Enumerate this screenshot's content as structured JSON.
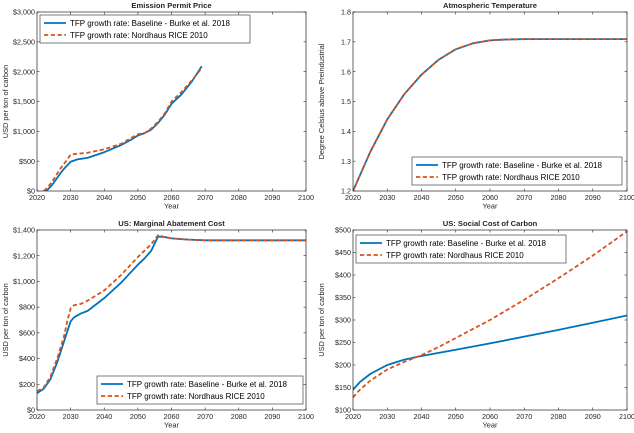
{
  "chart_data": [
    {
      "type": "line",
      "title": "Emission Permit Price",
      "xlabel": "Year",
      "ylabel": "USD per ton of carbon",
      "xlim": [
        2020,
        2100
      ],
      "ylim": [
        0,
        3000
      ],
      "xticks": [
        "2020",
        "2030",
        "2040",
        "2050",
        "2060",
        "2070",
        "2080",
        "2090",
        "2100"
      ],
      "yticks": [
        "$0",
        "$500",
        "$1,000",
        "$1,500",
        "$2,000",
        "$2,500",
        "$3,000"
      ],
      "ytick_values": [
        0,
        500,
        1000,
        1500,
        2000,
        2500,
        3000
      ],
      "legend_position": "top-left",
      "grid": false,
      "series": [
        {
          "name": "TFP growth rate: Baseline - Burke et al. 2018",
          "color": "#0072BD",
          "style": "solid",
          "x": [
            2022,
            2023,
            2024,
            2025,
            2026,
            2027,
            2028,
            2029,
            2030,
            2032,
            2035,
            2040,
            2045,
            2048,
            2050,
            2052,
            2054,
            2056,
            2058,
            2060,
            2063,
            2066,
            2069
          ],
          "y": [
            0,
            15,
            70,
            140,
            220,
            300,
            370,
            430,
            490,
            530,
            555,
            650,
            770,
            860,
            930,
            970,
            1030,
            1140,
            1280,
            1460,
            1620,
            1830,
            2090
          ]
        },
        {
          "name": "TFP growth rate: Nordhaus RICE 2010",
          "color": "#D95319",
          "style": "dashed",
          "x": [
            2022,
            2023,
            2024,
            2025,
            2026,
            2027,
            2028,
            2029,
            2030,
            2032,
            2035,
            2040,
            2045,
            2048,
            2050,
            2052,
            2054,
            2056,
            2058,
            2060,
            2063,
            2066,
            2069
          ],
          "y": [
            0,
            50,
            120,
            200,
            290,
            380,
            450,
            530,
            610,
            625,
            640,
            700,
            790,
            890,
            950,
            970,
            1050,
            1160,
            1300,
            1500,
            1660,
            1850,
            2060
          ]
        }
      ]
    },
    {
      "type": "line",
      "title": "Atmospheric Temperature",
      "xlabel": "Year",
      "ylabel": "Degree Celsius above Preindustrial",
      "xlim": [
        2020,
        2100
      ],
      "ylim": [
        1.2,
        1.8
      ],
      "xticks": [
        "2020",
        "2030",
        "2040",
        "2050",
        "2060",
        "2070",
        "2080",
        "2090",
        "2100"
      ],
      "yticks": [
        "1.2",
        "1.3",
        "1.4",
        "1.5",
        "1.6",
        "1.7",
        "1.8"
      ],
      "ytick_values": [
        1.2,
        1.3,
        1.4,
        1.5,
        1.6,
        1.7,
        1.8
      ],
      "legend_position": "bottom-right",
      "grid": false,
      "series": [
        {
          "name": "TFP growth rate: Baseline - Burke et al. 2018",
          "color": "#0072BD",
          "style": "solid",
          "x": [
            2020,
            2025,
            2030,
            2035,
            2040,
            2045,
            2050,
            2055,
            2060,
            2065,
            2070,
            2080,
            2090,
            2100
          ],
          "y": [
            1.2,
            1.33,
            1.44,
            1.525,
            1.59,
            1.64,
            1.675,
            1.695,
            1.705,
            1.708,
            1.709,
            1.709,
            1.709,
            1.709
          ]
        },
        {
          "name": "TFP growth rate: Nordhaus RICE 2010",
          "color": "#D95319",
          "style": "dashed",
          "x": [
            2020,
            2025,
            2030,
            2035,
            2040,
            2045,
            2050,
            2055,
            2060,
            2065,
            2070,
            2080,
            2090,
            2100
          ],
          "y": [
            1.2,
            1.33,
            1.44,
            1.525,
            1.59,
            1.64,
            1.675,
            1.695,
            1.705,
            1.708,
            1.709,
            1.709,
            1.709,
            1.709
          ]
        }
      ]
    },
    {
      "type": "line",
      "title": "US: Marginal Abatement Cost",
      "xlabel": "Year",
      "ylabel": "USD per ton of carbon",
      "xlim": [
        2020,
        2100
      ],
      "ylim": [
        0,
        1400
      ],
      "xticks": [
        "2020",
        "2030",
        "2040",
        "2050",
        "2060",
        "2070",
        "2080",
        "2090",
        "2100"
      ],
      "yticks": [
        "$0",
        "$200",
        "$400",
        "$600",
        "$800",
        "$1,000",
        "$1,200",
        "$1,400"
      ],
      "ytick_values": [
        0,
        200,
        400,
        600,
        800,
        1000,
        1200,
        1400
      ],
      "legend_position": "bottom-right",
      "grid": false,
      "series": [
        {
          "name": "TFP growth rate: Baseline - Burke et al. 2018",
          "color": "#0072BD",
          "style": "solid",
          "x": [
            2020,
            2022,
            2024,
            2026,
            2028,
            2029,
            2030,
            2031,
            2033,
            2035,
            2040,
            2045,
            2050,
            2052,
            2054,
            2056,
            2058,
            2060,
            2065,
            2070,
            2080,
            2090,
            2100
          ],
          "y": [
            130,
            165,
            240,
            370,
            530,
            610,
            690,
            720,
            750,
            770,
            870,
            990,
            1130,
            1180,
            1240,
            1350,
            1345,
            1335,
            1325,
            1320,
            1320,
            1320,
            1320
          ]
        },
        {
          "name": "TFP growth rate: Nordhaus RICE 2010",
          "color": "#D95319",
          "style": "dashed",
          "x": [
            2020,
            2022,
            2024,
            2026,
            2028,
            2029,
            2030,
            2031,
            2033,
            2035,
            2040,
            2045,
            2050,
            2052,
            2054,
            2056,
            2058,
            2060,
            2065,
            2070,
            2080,
            2090,
            2100
          ],
          "y": [
            145,
            175,
            260,
            400,
            570,
            690,
            790,
            815,
            825,
            850,
            930,
            1050,
            1190,
            1240,
            1290,
            1360,
            1345,
            1335,
            1325,
            1320,
            1320,
            1320,
            1320
          ]
        }
      ]
    },
    {
      "type": "line",
      "title": "US: Social Cost of Carbon",
      "xlabel": "Year",
      "ylabel": "USD per ton of carbon",
      "xlim": [
        2020,
        2100
      ],
      "ylim": [
        100,
        500
      ],
      "xticks": [
        "2020",
        "2030",
        "2040",
        "2050",
        "2060",
        "2070",
        "2080",
        "2090",
        "2100"
      ],
      "yticks": [
        "$100",
        "$150",
        "$200",
        "$250",
        "$300",
        "$350",
        "$400",
        "$450",
        "$500"
      ],
      "ytick_values": [
        100,
        150,
        200,
        250,
        300,
        350,
        400,
        450,
        500
      ],
      "legend_position": "top-left",
      "grid": false,
      "series": [
        {
          "name": "TFP growth rate: Baseline - Burke et al. 2018",
          "color": "#0072BD",
          "style": "solid",
          "x": [
            2020,
            2022,
            2025,
            2030,
            2035,
            2040,
            2045,
            2050,
            2060,
            2070,
            2080,
            2090,
            2100
          ],
          "y": [
            145,
            162,
            180,
            200,
            212,
            220,
            227,
            234,
            248,
            263,
            278,
            294,
            310
          ]
        },
        {
          "name": "TFP growth rate: Nordhaus RICE 2010",
          "color": "#D95319",
          "style": "dashed",
          "x": [
            2020,
            2022,
            2025,
            2030,
            2035,
            2040,
            2045,
            2050,
            2060,
            2070,
            2080,
            2090,
            2100
          ],
          "y": [
            128,
            145,
            165,
            190,
            207,
            222,
            240,
            260,
            300,
            345,
            393,
            443,
            497
          ]
        }
      ]
    }
  ]
}
